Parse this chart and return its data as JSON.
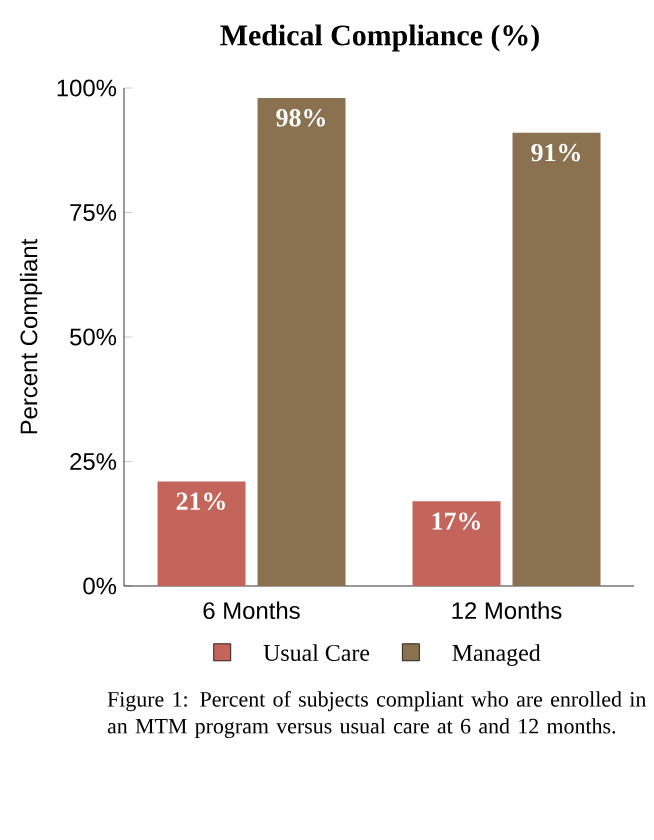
{
  "chart_data": {
    "type": "bar",
    "title": "Medical Compliance (%)",
    "ylabel": "Percent Compliant",
    "categories": [
      "6 Months",
      "12 Months"
    ],
    "series": [
      {
        "name": "Usual Care",
        "color": "#c4655c",
        "values": [
          21,
          17
        ],
        "value_labels": [
          "21%",
          "17%"
        ]
      },
      {
        "name": "Managed",
        "color": "#8a7250",
        "values": [
          98,
          91
        ],
        "value_labels": [
          "98%",
          "91%"
        ]
      }
    ],
    "ylim": [
      0,
      100
    ],
    "yticks": [
      {
        "value": 0,
        "label": "0%"
      },
      {
        "value": 25,
        "label": "25%"
      },
      {
        "value": 50,
        "label": "50%"
      },
      {
        "value": 75,
        "label": "75%"
      },
      {
        "value": 100,
        "label": "100%"
      }
    ],
    "grid": false,
    "legend": "bottom",
    "annotations": [
      "Figure 1: Percent of subjects compliant who are enrolled in an MTM program versus usual care at 6 and 12 months."
    ]
  }
}
